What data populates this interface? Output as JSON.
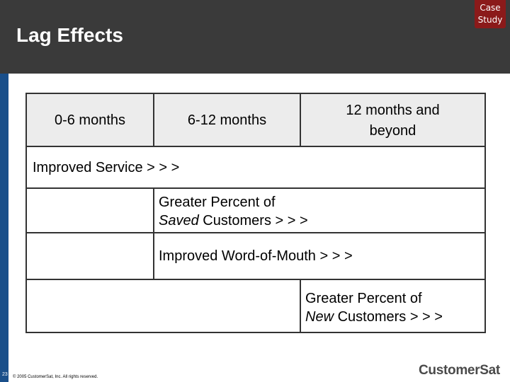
{
  "slide": {
    "title": "Lag Effects",
    "badge_line1": "Case",
    "badge_line2": "Study",
    "page_number": "23",
    "copyright": "© 2005 CustomerSat, Inc. All rights reserved.",
    "logo_left": "Customer",
    "logo_right": "Sat"
  },
  "colors": {
    "header_bar": "#3a3a3a",
    "badge": "#8b1a1a",
    "left_stripe": "#1a4f8a",
    "header_cells": "#ececec"
  },
  "timeline": {
    "headers": [
      {
        "line1": "0-6 months",
        "line2": ""
      },
      {
        "line1": "6-12 months",
        "line2": ""
      },
      {
        "line1": "12 months and",
        "line2": "beyond"
      }
    ],
    "effects": [
      {
        "line1": "Improved Service  > > >",
        "line2": ""
      },
      {
        "line1": "Greater Percent of",
        "line2_italic": "Saved",
        "line2_rest": " Customers  > > >"
      },
      {
        "line1": "Improved Word-of-Mouth > > >",
        "line2": ""
      },
      {
        "line1": "Greater Percent of",
        "line2_italic": "New",
        "line2_rest": " Customers > > >"
      }
    ]
  }
}
